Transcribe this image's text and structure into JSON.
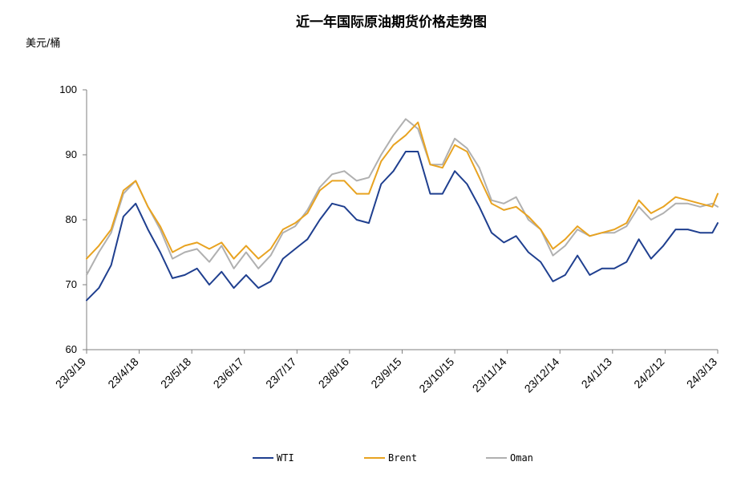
{
  "chart_data": {
    "type": "line",
    "title": "近一年国际原油期货价格走势图",
    "ylabel": "美元/桶",
    "xlabel": "",
    "ylim": [
      60,
      100
    ],
    "yticks": [
      60,
      70,
      80,
      90,
      100
    ],
    "xlim": [
      "2023-03-19",
      "2024-03-13"
    ],
    "grid": false,
    "legend_position": "bottom",
    "xtick_dates": [
      "2023-03-19",
      "2023-04-18",
      "2023-05-18",
      "2023-06-17",
      "2023-07-17",
      "2023-08-16",
      "2023-09-15",
      "2023-10-15",
      "2023-11-14",
      "2023-12-14",
      "2024-01-13",
      "2024-02-12",
      "2024-03-13"
    ],
    "xtick_labels": [
      "23/3/19",
      "23/4/18",
      "23/5/18",
      "23/6/17",
      "23/7/17",
      "23/8/16",
      "23/9/15",
      "23/10/15",
      "23/11/14",
      "23/12/14",
      "24/1/13",
      "24/2/12",
      "24/3/13"
    ],
    "x": [
      "2023-03-19",
      "2023-03-26",
      "2023-04-02",
      "2023-04-09",
      "2023-04-16",
      "2023-04-23",
      "2023-04-30",
      "2023-05-07",
      "2023-05-14",
      "2023-05-21",
      "2023-05-28",
      "2023-06-04",
      "2023-06-11",
      "2023-06-18",
      "2023-06-25",
      "2023-07-02",
      "2023-07-09",
      "2023-07-16",
      "2023-07-23",
      "2023-07-30",
      "2023-08-06",
      "2023-08-13",
      "2023-08-20",
      "2023-08-27",
      "2023-09-03",
      "2023-09-10",
      "2023-09-17",
      "2023-09-24",
      "2023-10-01",
      "2023-10-08",
      "2023-10-15",
      "2023-10-22",
      "2023-10-29",
      "2023-11-05",
      "2023-11-12",
      "2023-11-19",
      "2023-11-26",
      "2023-12-03",
      "2023-12-10",
      "2023-12-17",
      "2023-12-24",
      "2023-12-31",
      "2024-01-07",
      "2024-01-14",
      "2024-01-21",
      "2024-01-28",
      "2024-02-04",
      "2024-02-11",
      "2024-02-18",
      "2024-02-25",
      "2024-03-03",
      "2024-03-10",
      "2024-03-13"
    ],
    "series": [
      {
        "name": "WTI",
        "color": "#1f3f8f",
        "values": [
          67.6,
          69.5,
          73.0,
          80.5,
          82.5,
          78.5,
          75.0,
          71.0,
          71.5,
          72.5,
          70.0,
          72.0,
          69.5,
          71.5,
          69.5,
          70.5,
          74.0,
          75.5,
          77.0,
          80.0,
          82.5,
          82.0,
          80.0,
          79.5,
          85.5,
          87.5,
          90.5,
          90.5,
          84.0,
          84.0,
          87.5,
          85.5,
          82.0,
          78.0,
          76.5,
          77.5,
          75.0,
          73.5,
          70.5,
          71.5,
          74.5,
          71.5,
          72.5,
          72.5,
          73.5,
          77.0,
          74.0,
          76.0,
          78.5,
          78.5,
          78.0,
          78.0,
          79.5
        ]
      },
      {
        "name": "Brent",
        "color": "#e8a321",
        "values": [
          74.0,
          76.0,
          78.5,
          84.5,
          86.0,
          82.0,
          79.0,
          75.0,
          76.0,
          76.5,
          75.5,
          76.5,
          74.0,
          76.0,
          74.0,
          75.5,
          78.5,
          79.5,
          81.0,
          84.5,
          86.0,
          86.0,
          84.0,
          84.0,
          89.0,
          91.5,
          93.0,
          95.0,
          88.5,
          88.0,
          91.5,
          90.5,
          86.5,
          82.5,
          81.5,
          82.0,
          80.5,
          78.5,
          75.5,
          77.0,
          79.0,
          77.5,
          78.0,
          78.5,
          79.5,
          83.0,
          81.0,
          82.0,
          83.5,
          83.0,
          82.5,
          82.0,
          84.0
        ]
      },
      {
        "name": "Oman",
        "color": "#b0b0b0",
        "values": [
          71.5,
          75.0,
          78.0,
          84.0,
          86.0,
          82.0,
          78.5,
          74.0,
          75.0,
          75.5,
          73.5,
          76.0,
          72.5,
          75.0,
          72.5,
          74.5,
          78.0,
          79.0,
          81.5,
          85.0,
          87.0,
          87.5,
          86.0,
          86.5,
          90.0,
          93.0,
          95.5,
          94.0,
          88.5,
          88.5,
          92.5,
          91.0,
          88.0,
          83.0,
          82.5,
          83.5,
          80.0,
          78.5,
          74.5,
          76.0,
          78.5,
          77.5,
          78.0,
          78.0,
          79.0,
          82.0,
          80.0,
          81.0,
          82.5,
          82.5,
          82.0,
          82.5,
          82.0
        ]
      }
    ]
  }
}
